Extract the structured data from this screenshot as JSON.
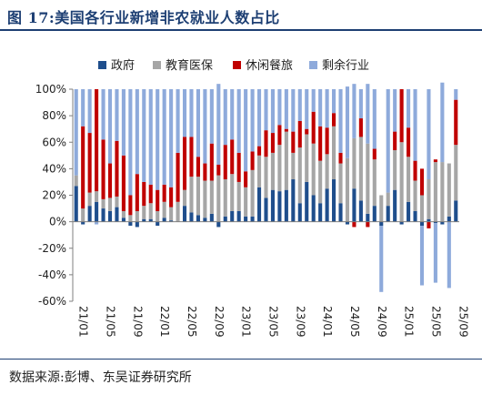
{
  "figure": {
    "title": "图 17:美国各行业新增非农就业人数占比",
    "source": "数据来源:彭博、东吴证券研究所"
  },
  "colors": {
    "government": "#1f4e8c",
    "education_health": "#a6a6a6",
    "leisure_hospitality": "#c00000",
    "other": "#8eaadb",
    "title": "#1d3f73"
  },
  "chart_data": {
    "type": "bar",
    "stacked": true,
    "ylim": [
      -60,
      100
    ],
    "yticks": [
      "-60%",
      "-40%",
      "-20%",
      "0%",
      "20%",
      "40%",
      "60%",
      "80%",
      "100%"
    ],
    "ytick_values": [
      -60,
      -40,
      -20,
      0,
      20,
      40,
      60,
      80,
      100
    ],
    "xtick_labels": [
      "21/01",
      "21/05",
      "21/09",
      "22/01",
      "22/05",
      "22/09",
      "23/01",
      "23/05",
      "23/09",
      "24/01",
      "24/05",
      "24/09",
      "25/01",
      "25/05",
      "25/09"
    ],
    "legend_position": "top",
    "grid": false,
    "categories": [
      "21/01",
      "21/02",
      "21/03",
      "21/04",
      "21/05",
      "21/06",
      "21/07",
      "21/08",
      "21/09",
      "21/10",
      "21/11",
      "21/12",
      "22/01",
      "22/02",
      "22/03",
      "22/04",
      "22/05",
      "22/06",
      "22/07",
      "22/08",
      "22/09",
      "22/10",
      "22/11",
      "22/12",
      "23/01",
      "23/02",
      "23/03",
      "23/04",
      "23/05",
      "23/06",
      "23/07",
      "23/08",
      "23/09",
      "23/10",
      "23/11",
      "23/12",
      "24/01",
      "24/02",
      "24/03",
      "24/04",
      "24/05",
      "24/06",
      "24/07",
      "24/08",
      "24/09",
      "24/10",
      "24/11",
      "24/12",
      "25/01",
      "25/02",
      "25/03",
      "25/04",
      "25/05",
      "25/06",
      "25/07",
      "25/08",
      "25/09"
    ],
    "series": [
      {
        "name": "政府",
        "values": [
          27,
          -2,
          12,
          15,
          10,
          8,
          11,
          3,
          -3,
          -4,
          2,
          2,
          -3,
          3,
          1,
          0,
          12,
          7,
          5,
          3,
          6,
          -4,
          4,
          8,
          8,
          4,
          4,
          26,
          18,
          24,
          23,
          24,
          32,
          14,
          30,
          20,
          14,
          25,
          32,
          14,
          -2,
          25,
          16,
          6,
          12,
          -3,
          12,
          24,
          -2,
          15,
          8,
          -3,
          2,
          -1,
          -2,
          4,
          16
        ]
      },
      {
        "name": "教育医保",
        "values": [
          8,
          10,
          10,
          8,
          7,
          10,
          8,
          5,
          5,
          8,
          10,
          12,
          8,
          12,
          10,
          15,
          12,
          27,
          29,
          28,
          25,
          35,
          28,
          28,
          22,
          22,
          35,
          24,
          31,
          28,
          35,
          44,
          20,
          42,
          36,
          39,
          32,
          26,
          40,
          30,
          48,
          38,
          48,
          53,
          35,
          20,
          10,
          30,
          60,
          34,
          23,
          20,
          30,
          45,
          45,
          40,
          42
        ]
      },
      {
        "name": "休闲餐旅",
        "values": [
          0,
          62,
          45,
          77,
          45,
          26,
          42,
          42,
          15,
          28,
          18,
          14,
          16,
          13,
          15,
          37,
          40,
          30,
          15,
          13,
          28,
          8,
          26,
          26,
          22,
          12,
          14,
          7,
          20,
          15,
          15,
          2,
          16,
          20,
          4,
          24,
          26,
          20,
          10,
          8,
          0,
          -4,
          14,
          -4,
          8,
          0,
          0,
          14,
          40,
          22,
          15,
          20,
          -5,
          2,
          0,
          0,
          34
        ]
      },
      {
        "name": "剩余行业",
        "values": [
          65,
          28,
          33,
          -2,
          38,
          56,
          39,
          50,
          80,
          64,
          70,
          72,
          76,
          72,
          74,
          48,
          36,
          36,
          51,
          56,
          41,
          61,
          42,
          38,
          48,
          62,
          47,
          43,
          31,
          33,
          27,
          30,
          32,
          24,
          30,
          17,
          28,
          29,
          18,
          48,
          54,
          41,
          22,
          45,
          45,
          -50,
          78,
          32,
          0,
          29,
          54,
          -45,
          68,
          -45,
          60,
          -50,
          8
        ]
      }
    ]
  }
}
